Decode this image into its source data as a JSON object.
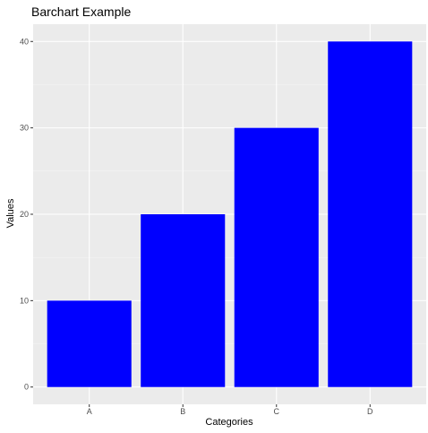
{
  "chart_data": {
    "type": "bar",
    "title": "Barchart Example",
    "xlabel": "Categories",
    "ylabel": "Values",
    "categories": [
      "A",
      "B",
      "C",
      "D"
    ],
    "values": [
      10,
      20,
      30,
      40
    ],
    "ylim": [
      -2,
      42
    ],
    "yticks": [
      0,
      10,
      20,
      30,
      40
    ],
    "grid": true,
    "legend": "none",
    "colors": {
      "bar": "#0000ff",
      "panel": "#ebebeb",
      "grid_major": "#ffffff",
      "grid_minor": "#f4f4f4",
      "tick": "#333333"
    }
  }
}
